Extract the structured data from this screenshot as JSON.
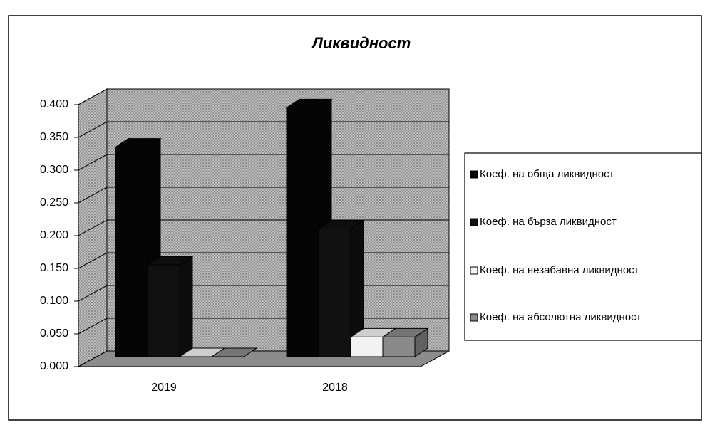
{
  "chart_data": {
    "type": "bar3d",
    "title": "Ликвидност",
    "categories": [
      "2019",
      "2018"
    ],
    "series": [
      {
        "name": "Коеф. на обща ликвидност",
        "color": "#050505",
        "values": [
          0.32,
          0.38
        ]
      },
      {
        "name": "Коеф. на бърза ликвидност",
        "color": "#111111",
        "values": [
          0.14,
          0.195
        ]
      },
      {
        "name": "Коеф. на незабавна ликвидност",
        "color": "#f2f2f2",
        "values": [
          0,
          0.03
        ]
      },
      {
        "name": "Коеф. на абсолютна ликвидност",
        "color": "#8a8a8a",
        "values": [
          0,
          0.03
        ]
      }
    ],
    "ylim": [
      0,
      0.4
    ],
    "yticks": [
      {
        "value": 0,
        "label": "0.000"
      },
      {
        "value": 0.05,
        "label": "0.050"
      },
      {
        "value": 0.1,
        "label": "0.100"
      },
      {
        "value": 0.15,
        "label": "0.150"
      },
      {
        "value": 0.2,
        "label": "0.200"
      },
      {
        "value": 0.25,
        "label": "0.250"
      },
      {
        "value": 0.3,
        "label": "0.300"
      },
      {
        "value": 0.35,
        "label": "0.350"
      },
      {
        "value": 0.4,
        "label": "0.400"
      }
    ],
    "grid": true,
    "legend": "right"
  }
}
